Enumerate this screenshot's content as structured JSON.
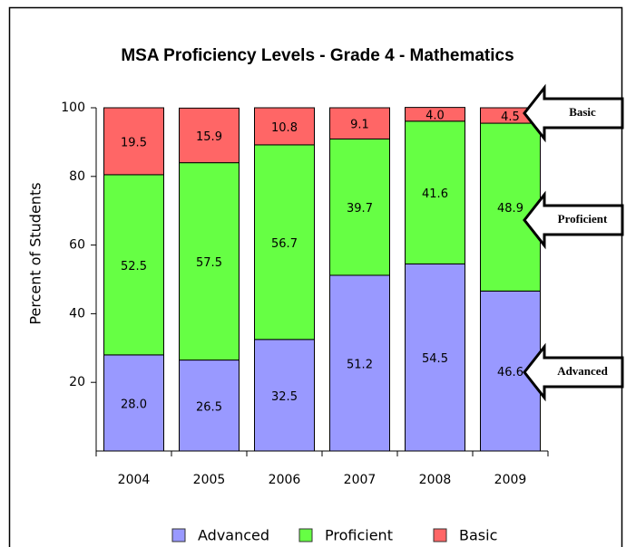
{
  "chart_data": {
    "type": "stacked_bar",
    "title": "MSA Proficiency Levels -  Grade 4 - Mathematics",
    "y_label": "Percent of Students",
    "categories": [
      "2004",
      "2005",
      "2006",
      "2007",
      "2008",
      "2009"
    ],
    "series": [
      {
        "name": "Advanced",
        "color": "#9999ff",
        "values": [
          28.0,
          26.5,
          32.5,
          51.2,
          54.5,
          46.6
        ],
        "value_labels": [
          "28.0",
          "26.5",
          "32.5",
          "51.2",
          "54.5",
          "46.6"
        ]
      },
      {
        "name": "Proficient",
        "color": "#66ff44",
        "values": [
          52.5,
          57.5,
          56.7,
          39.7,
          41.6,
          48.9
        ],
        "value_labels": [
          "52.5",
          "57.5",
          "56.7",
          "39.7",
          "41.6",
          "48.9"
        ]
      },
      {
        "name": "Basic",
        "color": "#ff6666",
        "values": [
          19.5,
          15.9,
          10.8,
          9.1,
          4.0,
          4.5
        ],
        "value_labels": [
          "19.5",
          "15.9",
          "10.8",
          "9.1",
          "4.0",
          "4.5"
        ]
      }
    ],
    "ylim": [
      0,
      100
    ],
    "yticks": [
      20,
      40,
      60,
      80,
      100
    ],
    "annotations": [
      "Basic",
      "Proficient",
      "Advanced"
    ]
  }
}
